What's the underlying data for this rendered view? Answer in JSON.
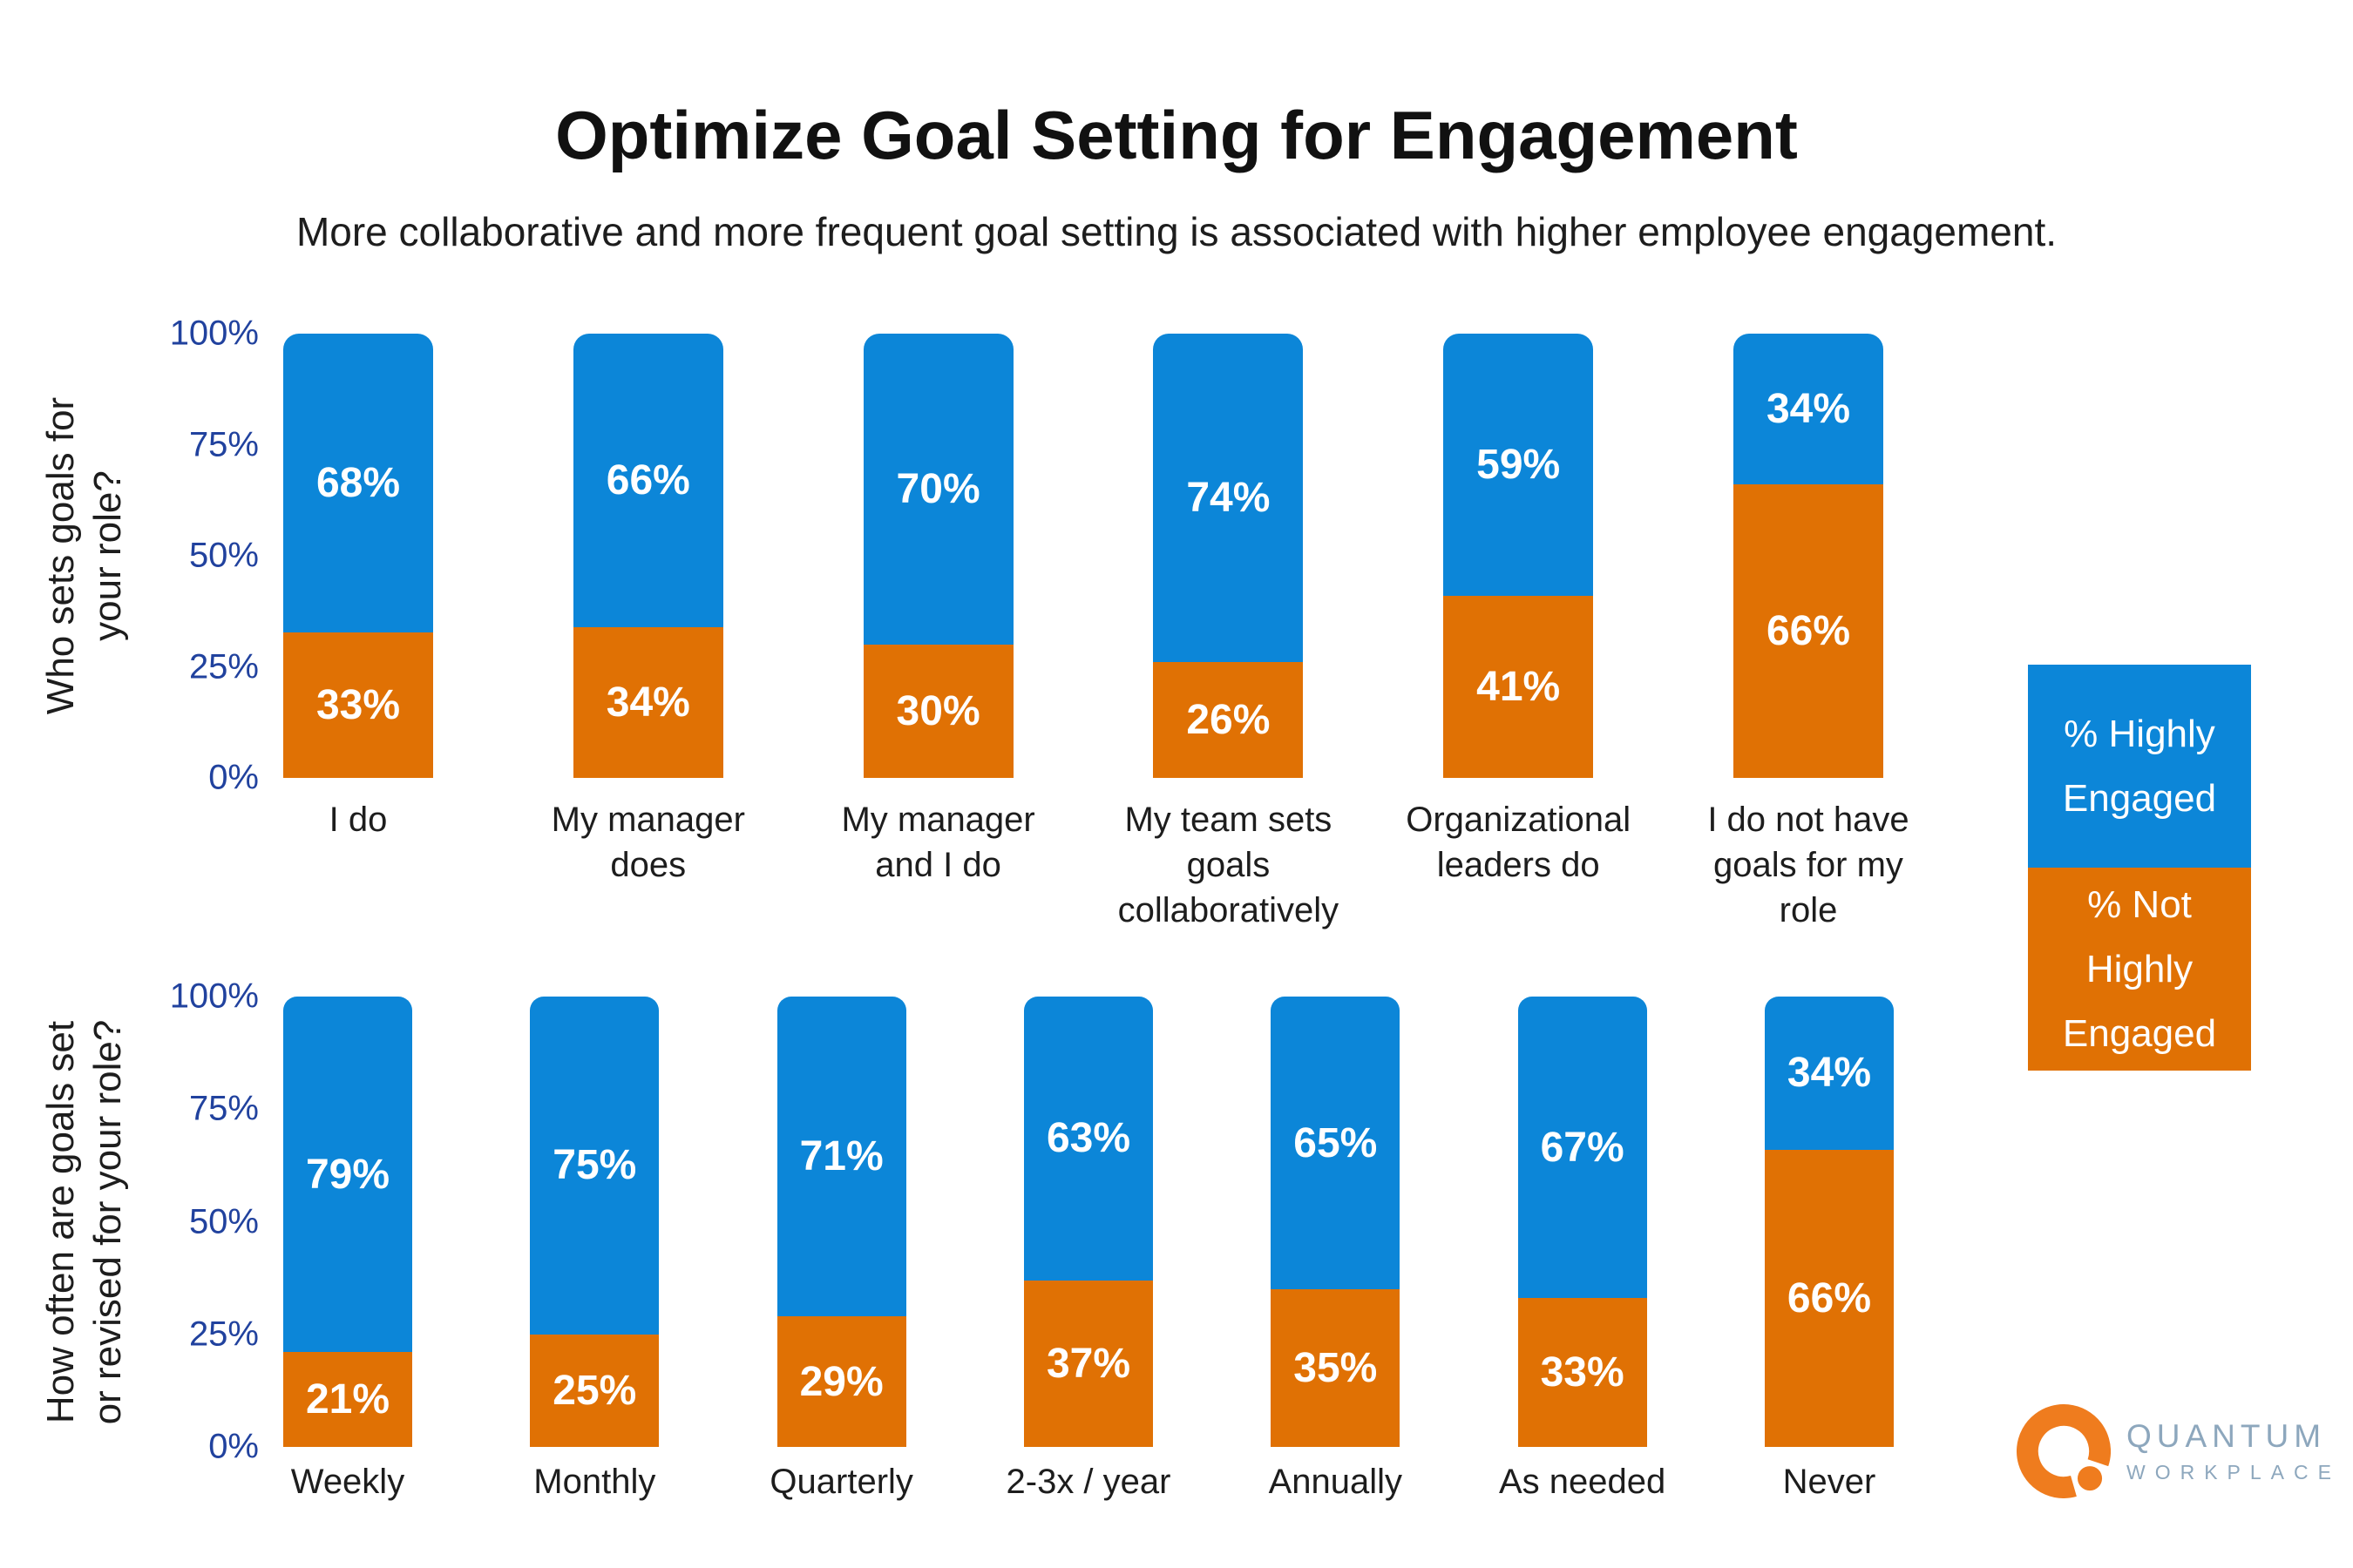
{
  "header": {
    "title": "Optimize Goal Setting for Engagement",
    "subtitle": "More collaborative and more frequent goal setting is associated with higher employee engagement."
  },
  "colors": {
    "highly_engaged_blue": "#0c86d8",
    "not_highly_engaged_orange": "#e07104",
    "axis_tick_navy": "#21429e",
    "text_dark": "#1d1d1d",
    "value_label_white": "#ffffff",
    "logo_orange": "#ef7c1e",
    "logo_gray_blue": "#8da7bd"
  },
  "legend": {
    "items": [
      {
        "label": "% Highly\nEngaged",
        "color": "#0c86d8"
      },
      {
        "label": "% Not\nHighly\nEngaged",
        "color": "#e07104"
      }
    ]
  },
  "logo": {
    "brand": "QUANTUM",
    "brand_sub": "WORKPLACE"
  },
  "chart_data": [
    {
      "type": "bar",
      "stacked": true,
      "orientation": "vertical",
      "axis_title": "Who sets goals for\nyour role?",
      "categories": [
        "I do",
        "My manager does",
        "My manager and I do",
        "My team sets goals collaboratively",
        "Organizational leaders do",
        "I do not have goals for my role"
      ],
      "category_labels": [
        "I do",
        "My manager\ndoes",
        "My manager\nand I do",
        "My team sets\ngoals\ncollaboratively",
        "Organizational\nleaders do",
        "I do not have\ngoals for my\nrole"
      ],
      "series": [
        {
          "name": "% Highly Engaged",
          "color": "#0c86d8",
          "values": [
            68,
            66,
            70,
            74,
            59,
            34
          ]
        },
        {
          "name": "% Not Highly Engaged",
          "color": "#e07104",
          "values": [
            33,
            34,
            30,
            26,
            41,
            66
          ]
        }
      ],
      "yticks": [
        "100%",
        "75%",
        "50%",
        "25%",
        "0%"
      ],
      "ylim": [
        0,
        100
      ],
      "grid": false,
      "legend_position": "right",
      "value_suffix": "%"
    },
    {
      "type": "bar",
      "stacked": true,
      "orientation": "vertical",
      "axis_title": "How often are goals set\nor revised for your role?",
      "categories": [
        "Weekly",
        "Monthly",
        "Quarterly",
        "2-3x / year",
        "Annually",
        "As needed",
        "Never"
      ],
      "category_labels": [
        "Weekly",
        "Monthly",
        "Quarterly",
        "2-3x / year",
        "Annually",
        "As needed",
        "Never"
      ],
      "series": [
        {
          "name": "% Highly Engaged",
          "color": "#0c86d8",
          "values": [
            79,
            75,
            71,
            63,
            65,
            67,
            34
          ]
        },
        {
          "name": "% Not Highly Engaged",
          "color": "#e07104",
          "values": [
            21,
            25,
            29,
            37,
            35,
            33,
            66
          ]
        }
      ],
      "yticks": [
        "100%",
        "75%",
        "50%",
        "25%",
        "0%"
      ],
      "ylim": [
        0,
        100
      ],
      "grid": false,
      "legend_position": "right",
      "value_suffix": "%"
    }
  ]
}
